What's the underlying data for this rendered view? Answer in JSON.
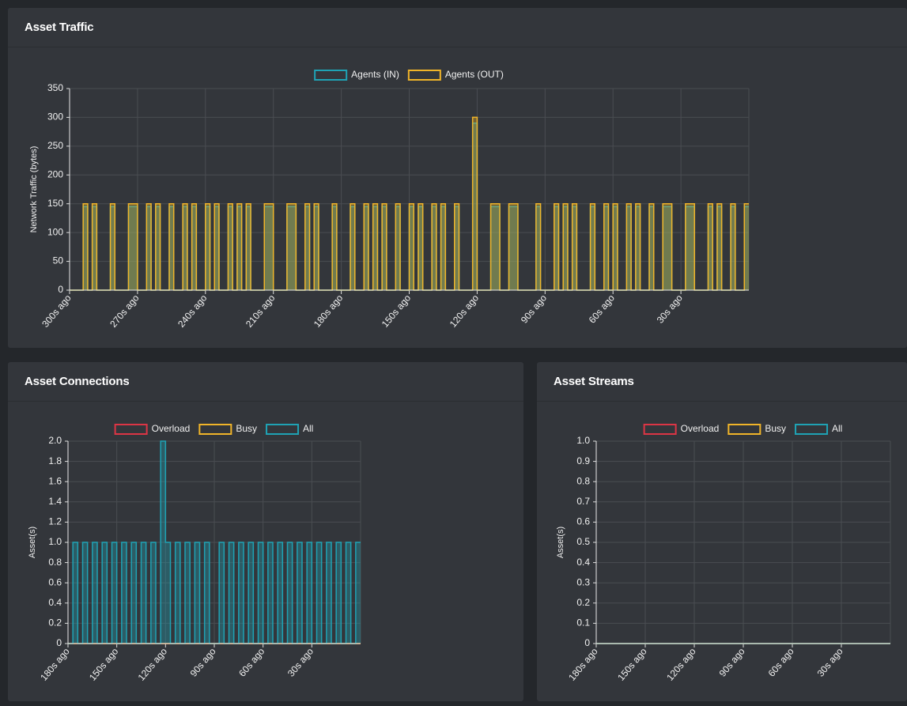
{
  "chart_data": [
    {
      "type": "line",
      "title": "Asset Traffic",
      "y_label": "Network Traffic (bytes)",
      "stepped": true,
      "fill": true,
      "categories": [
        "300s ago",
        null,
        null,
        null,
        null,
        null,
        null,
        null,
        null,
        null,
        null,
        null,
        null,
        null,
        null,
        "270s ago",
        null,
        null,
        null,
        null,
        null,
        null,
        null,
        null,
        null,
        null,
        null,
        null,
        null,
        null,
        "240s ago",
        null,
        null,
        null,
        null,
        null,
        null,
        null,
        null,
        null,
        null,
        null,
        null,
        null,
        null,
        "210s ago",
        null,
        null,
        null,
        null,
        null,
        null,
        null,
        null,
        null,
        null,
        null,
        null,
        null,
        null,
        "180s ago",
        null,
        null,
        null,
        null,
        null,
        null,
        null,
        null,
        null,
        null,
        null,
        null,
        null,
        null,
        "150s ago",
        null,
        null,
        null,
        null,
        null,
        null,
        null,
        null,
        null,
        null,
        null,
        null,
        null,
        null,
        "120s ago",
        null,
        null,
        null,
        null,
        null,
        null,
        null,
        null,
        null,
        null,
        null,
        null,
        null,
        null,
        "90s ago",
        null,
        null,
        null,
        null,
        null,
        null,
        null,
        null,
        null,
        null,
        null,
        null,
        null,
        null,
        "60s ago",
        null,
        null,
        null,
        null,
        null,
        null,
        null,
        null,
        null,
        null,
        null,
        null,
        null,
        null,
        "30s ago",
        null,
        null,
        null,
        null,
        null,
        null,
        null,
        null,
        null,
        null,
        null,
        null,
        null,
        null
      ],
      "series": [
        {
          "name": "Agents (IN)",
          "color": "#1fa2b4",
          "values": [
            0,
            0,
            0,
            145,
            0,
            145,
            0,
            0,
            0,
            145,
            0,
            0,
            0,
            145,
            145,
            0,
            0,
            145,
            0,
            145,
            0,
            0,
            145,
            0,
            0,
            145,
            0,
            145,
            0,
            0,
            145,
            0,
            145,
            0,
            0,
            145,
            0,
            145,
            0,
            145,
            0,
            0,
            0,
            145,
            145,
            0,
            0,
            0,
            145,
            145,
            0,
            0,
            145,
            0,
            145,
            0,
            0,
            0,
            145,
            0,
            0,
            0,
            145,
            0,
            0,
            145,
            0,
            145,
            0,
            145,
            0,
            0,
            145,
            0,
            0,
            145,
            0,
            145,
            0,
            0,
            145,
            0,
            145,
            0,
            0,
            145,
            0,
            0,
            0,
            290,
            0,
            0,
            0,
            145,
            145,
            0,
            0,
            145,
            145,
            0,
            0,
            0,
            0,
            145,
            0,
            0,
            0,
            145,
            0,
            145,
            0,
            145,
            0,
            0,
            0,
            145,
            0,
            0,
            145,
            0,
            145,
            0,
            0,
            145,
            0,
            145,
            0,
            0,
            145,
            0,
            0,
            145,
            145,
            0,
            0,
            0,
            145,
            145,
            0,
            0,
            0,
            145,
            0,
            145,
            0,
            0,
            145,
            0,
            0,
            145
          ]
        },
        {
          "name": "Agents (OUT)",
          "color": "#f0b429",
          "values": [
            0,
            0,
            0,
            150,
            0,
            150,
            0,
            0,
            0,
            150,
            0,
            0,
            0,
            150,
            150,
            0,
            0,
            150,
            0,
            150,
            0,
            0,
            150,
            0,
            0,
            150,
            0,
            150,
            0,
            0,
            150,
            0,
            150,
            0,
            0,
            150,
            0,
            150,
            0,
            150,
            0,
            0,
            0,
            150,
            150,
            0,
            0,
            0,
            150,
            150,
            0,
            0,
            150,
            0,
            150,
            0,
            0,
            0,
            150,
            0,
            0,
            0,
            150,
            0,
            0,
            150,
            0,
            150,
            0,
            150,
            0,
            0,
            150,
            0,
            0,
            150,
            0,
            150,
            0,
            0,
            150,
            0,
            150,
            0,
            0,
            150,
            0,
            0,
            0,
            300,
            0,
            0,
            0,
            150,
            150,
            0,
            0,
            150,
            150,
            0,
            0,
            0,
            0,
            150,
            0,
            0,
            0,
            150,
            0,
            150,
            0,
            150,
            0,
            0,
            0,
            150,
            0,
            0,
            150,
            0,
            150,
            0,
            0,
            150,
            0,
            150,
            0,
            0,
            150,
            0,
            0,
            150,
            150,
            0,
            0,
            0,
            150,
            150,
            0,
            0,
            0,
            150,
            0,
            150,
            0,
            0,
            150,
            0,
            0,
            150
          ]
        }
      ],
      "ylim": [
        0,
        350
      ],
      "yticks": [
        0,
        50,
        100,
        150,
        200,
        250,
        300,
        350
      ],
      "grid": true,
      "legend": "top"
    },
    {
      "type": "line",
      "title": "Asset Connections",
      "y_label": "Asset(s)",
      "stepped": true,
      "fill": true,
      "categories": [
        "180s ago",
        null,
        null,
        null,
        null,
        null,
        null,
        null,
        null,
        null,
        "150s ago",
        null,
        null,
        null,
        null,
        null,
        null,
        null,
        null,
        null,
        "120s ago",
        null,
        null,
        null,
        null,
        null,
        null,
        null,
        null,
        null,
        "90s ago",
        null,
        null,
        null,
        null,
        null,
        null,
        null,
        null,
        null,
        "60s ago",
        null,
        null,
        null,
        null,
        null,
        null,
        null,
        null,
        null,
        "30s ago",
        null,
        null,
        null,
        null,
        null,
        null,
        null,
        null,
        null
      ],
      "series": [
        {
          "name": "Overload",
          "color": "#dc3545",
          "values": [
            0,
            0,
            0,
            0,
            0,
            0,
            0,
            0,
            0,
            0,
            0,
            0,
            0,
            0,
            0,
            0,
            0,
            0,
            0,
            0,
            0,
            0,
            0,
            0,
            0,
            0,
            0,
            0,
            0,
            0,
            0,
            0,
            0,
            0,
            0,
            0,
            0,
            0,
            0,
            0,
            0,
            0,
            0,
            0,
            0,
            0,
            0,
            0,
            0,
            0,
            0,
            0,
            0,
            0,
            0,
            0,
            0,
            0,
            0,
            0
          ]
        },
        {
          "name": "Busy",
          "color": "#f0b429",
          "values": [
            0,
            0,
            0,
            0,
            0,
            0,
            0,
            0,
            0,
            0,
            0,
            0,
            0,
            0,
            0,
            0,
            0,
            0,
            0,
            0,
            0,
            0,
            0,
            0,
            0,
            0,
            0,
            0,
            0,
            0,
            0,
            0,
            0,
            0,
            0,
            0,
            0,
            0,
            0,
            0,
            0,
            0,
            0,
            0,
            0,
            0,
            0,
            0,
            0,
            0,
            0,
            0,
            0,
            0,
            0,
            0,
            0,
            0,
            0,
            0
          ]
        },
        {
          "name": "All",
          "color": "#1fa2b4",
          "values": [
            0,
            1,
            0,
            1,
            0,
            1,
            0,
            1,
            0,
            1,
            0,
            1,
            0,
            1,
            0,
            1,
            0,
            1,
            0,
            2,
            1,
            0,
            1,
            0,
            1,
            0,
            1,
            0,
            1,
            0,
            0,
            1,
            0,
            1,
            0,
            1,
            0,
            1,
            0,
            1,
            0,
            1,
            0,
            1,
            0,
            1,
            0,
            1,
            0,
            1,
            0,
            1,
            0,
            1,
            0,
            1,
            0,
            1,
            0,
            1
          ]
        }
      ],
      "ylim": [
        0,
        2
      ],
      "yticks": [
        0,
        0.2,
        0.4,
        0.6,
        0.8,
        {
          "value": 1,
          "label": "1.0"
        },
        1.2,
        1.4,
        1.6,
        1.8,
        {
          "value": 2,
          "label": "2.0"
        }
      ],
      "grid": true,
      "legend": "top"
    },
    {
      "type": "line",
      "title": "Asset Streams",
      "y_label": "Asset(s)",
      "stepped": true,
      "fill": true,
      "categories": [
        "180s ago",
        null,
        null,
        null,
        null,
        null,
        null,
        null,
        null,
        null,
        "150s ago",
        null,
        null,
        null,
        null,
        null,
        null,
        null,
        null,
        null,
        "120s ago",
        null,
        null,
        null,
        null,
        null,
        null,
        null,
        null,
        null,
        "90s ago",
        null,
        null,
        null,
        null,
        null,
        null,
        null,
        null,
        null,
        "60s ago",
        null,
        null,
        null,
        null,
        null,
        null,
        null,
        null,
        null,
        "30s ago",
        null,
        null,
        null,
        null,
        null,
        null,
        null,
        null,
        null
      ],
      "series": [
        {
          "name": "Overload",
          "color": "#dc3545",
          "values": [
            0,
            0,
            0,
            0,
            0,
            0,
            0,
            0,
            0,
            0,
            0,
            0,
            0,
            0,
            0,
            0,
            0,
            0,
            0,
            0,
            0,
            0,
            0,
            0,
            0,
            0,
            0,
            0,
            0,
            0,
            0,
            0,
            0,
            0,
            0,
            0,
            0,
            0,
            0,
            0,
            0,
            0,
            0,
            0,
            0,
            0,
            0,
            0,
            0,
            0,
            0,
            0,
            0,
            0,
            0,
            0,
            0,
            0,
            0,
            0
          ]
        },
        {
          "name": "Busy",
          "color": "#f0b429",
          "values": [
            0,
            0,
            0,
            0,
            0,
            0,
            0,
            0,
            0,
            0,
            0,
            0,
            0,
            0,
            0,
            0,
            0,
            0,
            0,
            0,
            0,
            0,
            0,
            0,
            0,
            0,
            0,
            0,
            0,
            0,
            0,
            0,
            0,
            0,
            0,
            0,
            0,
            0,
            0,
            0,
            0,
            0,
            0,
            0,
            0,
            0,
            0,
            0,
            0,
            0,
            0,
            0,
            0,
            0,
            0,
            0,
            0,
            0,
            0,
            0
          ]
        },
        {
          "name": "All",
          "color": "#1fa2b4",
          "values": [
            0,
            0,
            0,
            0,
            0,
            0,
            0,
            0,
            0,
            0,
            0,
            0,
            0,
            0,
            0,
            0,
            0,
            0,
            0,
            0,
            0,
            0,
            0,
            0,
            0,
            0,
            0,
            0,
            0,
            0,
            0,
            0,
            0,
            0,
            0,
            0,
            0,
            0,
            0,
            0,
            0,
            0,
            0,
            0,
            0,
            0,
            0,
            0,
            0,
            0,
            0,
            0,
            0,
            0,
            0,
            0,
            0,
            0,
            0,
            0
          ]
        }
      ],
      "ylim": [
        0,
        1
      ],
      "yticks": [
        0,
        0.1,
        0.2,
        0.3,
        0.4,
        0.5,
        0.6,
        0.7,
        0.8,
        0.9,
        {
          "value": 1,
          "label": "1.0"
        }
      ],
      "grid": true,
      "legend": "top"
    }
  ]
}
